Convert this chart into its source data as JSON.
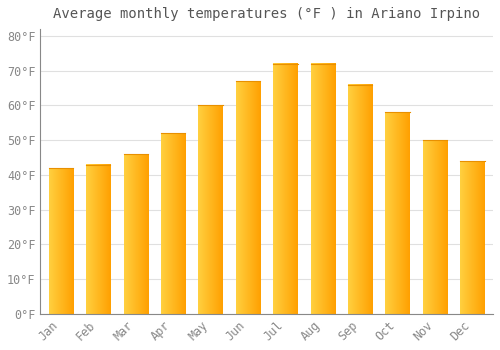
{
  "title": "Average monthly temperatures (°F ) in Ariano Irpino",
  "months": [
    "Jan",
    "Feb",
    "Mar",
    "Apr",
    "May",
    "Jun",
    "Jul",
    "Aug",
    "Sep",
    "Oct",
    "Nov",
    "Dec"
  ],
  "values": [
    42,
    43,
    46,
    52,
    60,
    67,
    72,
    72,
    66,
    58,
    50,
    44
  ],
  "bar_color_left": "#FFD040",
  "bar_color_right": "#FFA000",
  "background_color": "#FFFFFF",
  "grid_color": "#e0e0e0",
  "ylim": [
    0,
    82
  ],
  "yticks": [
    0,
    10,
    20,
    30,
    40,
    50,
    60,
    70,
    80
  ],
  "title_fontsize": 10,
  "tick_fontsize": 8.5,
  "tick_color": "#888888",
  "title_color": "#555555"
}
